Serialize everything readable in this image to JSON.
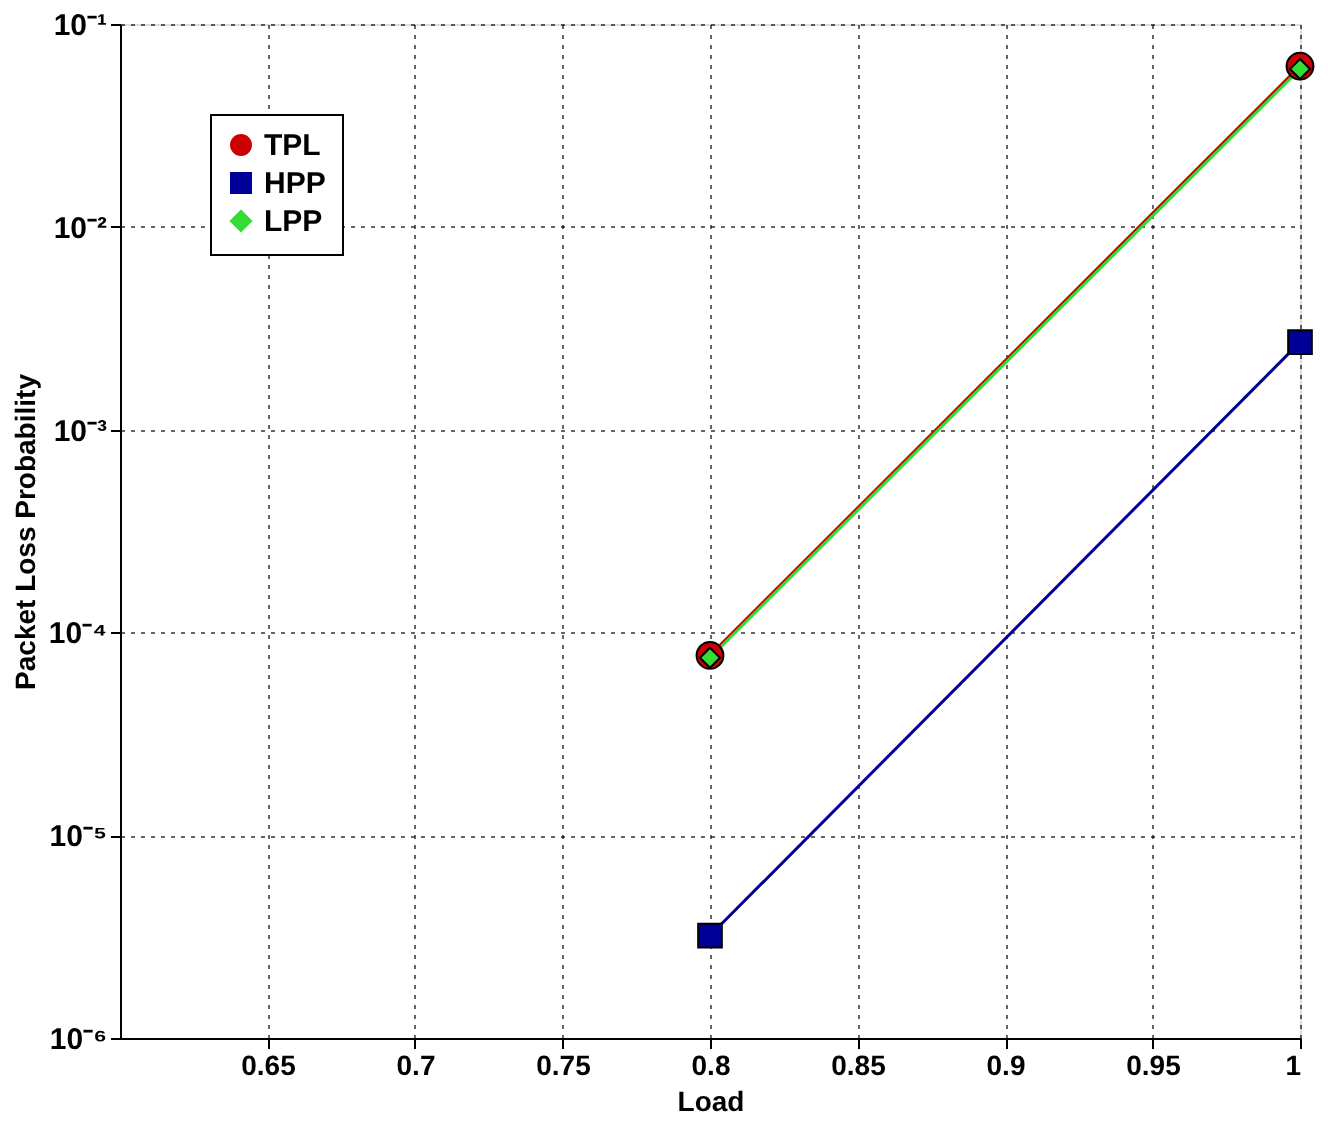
{
  "chart_data": {
    "type": "line",
    "xlabel": "Load",
    "ylabel": "Packet Loss Probability",
    "x": [
      0.8,
      1
    ],
    "series": [
      {
        "name": "TPL",
        "color": "#cc0000",
        "values": [
          7.7e-05,
          0.062
        ],
        "marker": "circle"
      },
      {
        "name": "HPP",
        "color": "#000099",
        "values": [
          3.2e-06,
          0.0027
        ],
        "marker": "square"
      },
      {
        "name": "LPP",
        "color": "#33dd33",
        "values": [
          7.5e-05,
          0.06
        ],
        "marker": "diamond"
      }
    ],
    "xlim": [
      0.6,
      1
    ],
    "xticks": [
      0.65,
      0.7,
      0.75,
      0.8,
      0.85,
      0.9,
      0.95,
      1
    ],
    "ylim": [
      1e-06,
      0.1
    ],
    "yticks": [
      {
        "value": 1e-06,
        "label": "10⁻⁶"
      },
      {
        "value": 1e-05,
        "label": "10⁻⁵"
      },
      {
        "value": 0.0001,
        "label": "10⁻⁴"
      },
      {
        "value": 0.001,
        "label": "10⁻³"
      },
      {
        "value": 0.01,
        "label": "10⁻²"
      },
      {
        "value": 0.1,
        "label": "10⁻¹"
      }
    ],
    "log": true,
    "grid": true,
    "legend": "top left",
    "line_style": "solid"
  }
}
